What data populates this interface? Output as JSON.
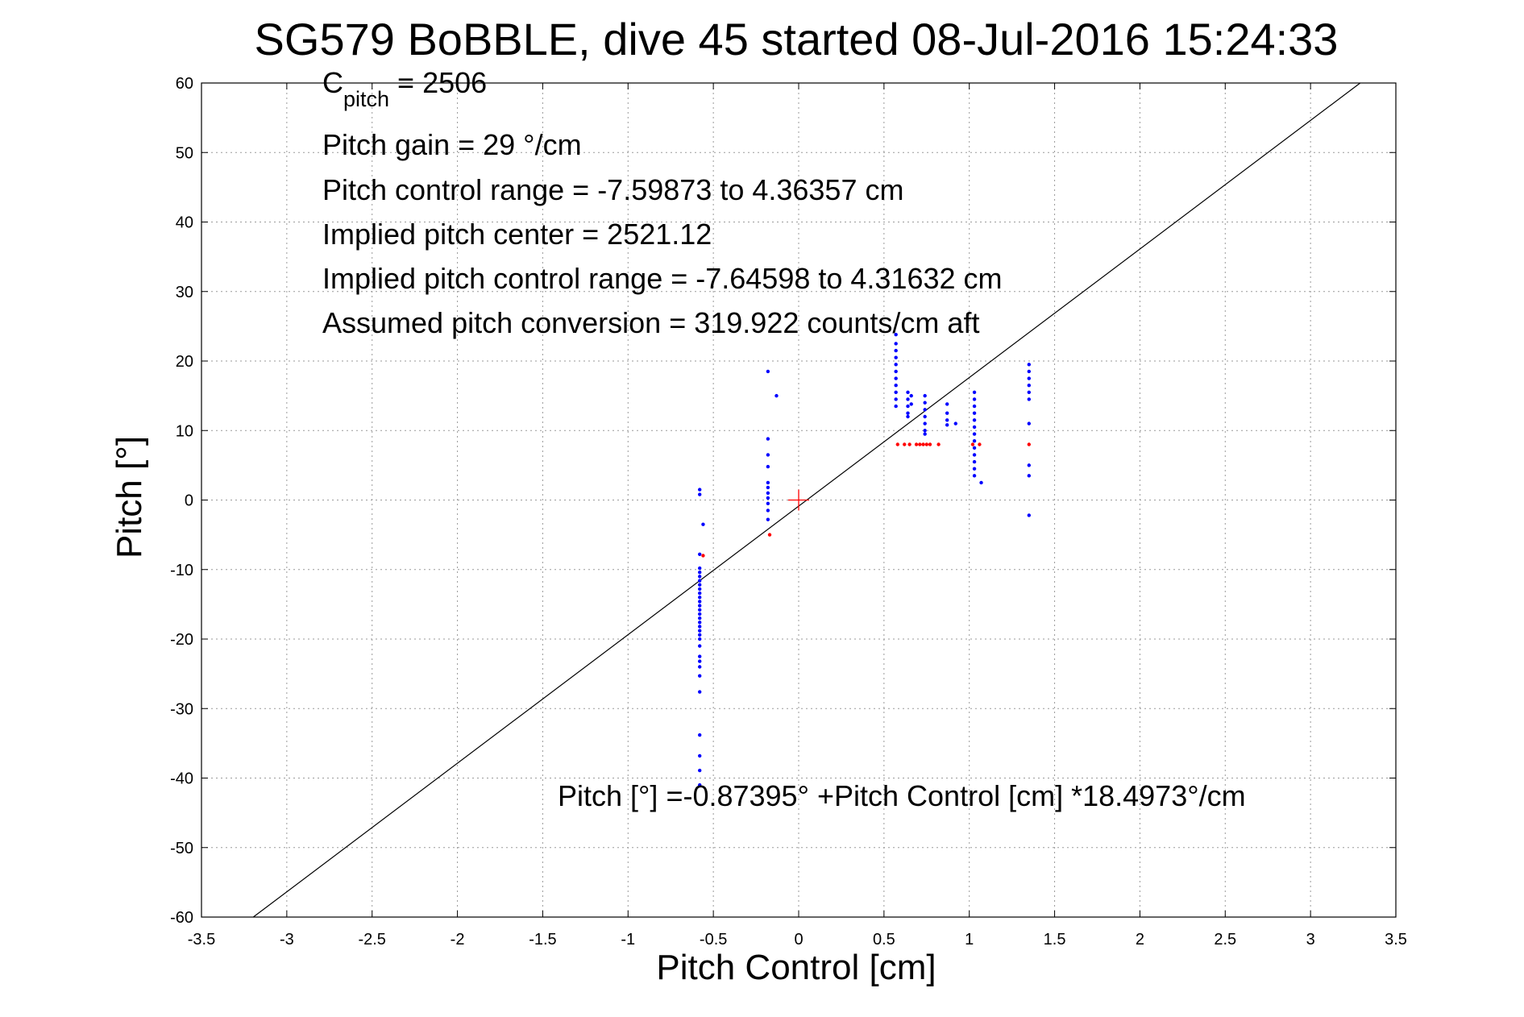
{
  "chart_data": {
    "type": "scatter",
    "title": "SG579 BoBBLE, dive 45 started 08-Jul-2016 15:24:33",
    "xlabel": "Pitch Control [cm]",
    "ylabel": "Pitch [°]",
    "xlim": [
      -3.5,
      3.5
    ],
    "ylim": [
      -60,
      60
    ],
    "xticks": [
      -3.5,
      -3,
      -2.5,
      -2,
      -1.5,
      -1,
      -0.5,
      0,
      0.5,
      1,
      1.5,
      2,
      2.5,
      3,
      3.5
    ],
    "xtick_labels": [
      "-3.5",
      "-3",
      "-2.5",
      "-2",
      "-1.5",
      "-1",
      "-0.5",
      "0",
      "0.5",
      "1",
      "1.5",
      "2",
      "2.5",
      "3",
      "3.5"
    ],
    "yticks": [
      -60,
      -50,
      -40,
      -30,
      -20,
      -10,
      0,
      10,
      20,
      30,
      40,
      50,
      60
    ],
    "ytick_labels": [
      "-60",
      "-50",
      "-40",
      "-30",
      "-20",
      "-10",
      "0",
      "10",
      "20",
      "30",
      "40",
      "50",
      "60"
    ],
    "grid": true,
    "fit_line": {
      "intercept": -0.87395,
      "slope": 18.4973,
      "color": "#000000"
    },
    "center_marker": {
      "x": 0,
      "y": 0,
      "color": "#ff0000",
      "shape": "plus"
    },
    "colors": {
      "blue": "#0000ff",
      "red": "#ff0000"
    },
    "series": [
      {
        "color": "#0000ff",
        "marker": "dot",
        "points": [
          [
            -0.58,
            1.5
          ],
          [
            -0.58,
            0.8
          ],
          [
            -0.56,
            -3.5
          ],
          [
            -0.58,
            -7.8
          ],
          [
            -0.58,
            -9.8
          ],
          [
            -0.58,
            -10.4
          ],
          [
            -0.58,
            -11.0
          ],
          [
            -0.58,
            -11.6
          ],
          [
            -0.58,
            -12.2
          ],
          [
            -0.58,
            -12.8
          ],
          [
            -0.58,
            -13.4
          ],
          [
            -0.58,
            -14.0
          ],
          [
            -0.58,
            -14.6
          ],
          [
            -0.58,
            -15.2
          ],
          [
            -0.58,
            -15.8
          ],
          [
            -0.58,
            -16.4
          ],
          [
            -0.58,
            -17.0
          ],
          [
            -0.58,
            -17.6
          ],
          [
            -0.58,
            -18.2
          ],
          [
            -0.58,
            -18.8
          ],
          [
            -0.58,
            -19.4
          ],
          [
            -0.58,
            -20.0
          ],
          [
            -0.58,
            -21.0
          ],
          [
            -0.58,
            -22.5
          ],
          [
            -0.58,
            -23.2
          ],
          [
            -0.58,
            -24.0
          ],
          [
            -0.58,
            -25.3
          ],
          [
            -0.58,
            -27.6
          ],
          [
            -0.58,
            -33.8
          ],
          [
            -0.58,
            -36.8
          ],
          [
            -0.58,
            -38.9
          ],
          [
            -0.58,
            -41.0
          ],
          [
            -0.18,
            18.5
          ],
          [
            -0.18,
            8.8
          ],
          [
            -0.18,
            6.5
          ],
          [
            -0.18,
            4.8
          ],
          [
            -0.18,
            2.5
          ],
          [
            -0.18,
            1.8
          ],
          [
            -0.18,
            1.0
          ],
          [
            -0.18,
            0.3
          ],
          [
            -0.18,
            -0.5
          ],
          [
            -0.18,
            -1.5
          ],
          [
            -0.18,
            -2.8
          ],
          [
            -0.13,
            15.0
          ],
          [
            0.57,
            23.8
          ],
          [
            0.57,
            22.5
          ],
          [
            0.57,
            21.5
          ],
          [
            0.57,
            20.5
          ],
          [
            0.57,
            19.5
          ],
          [
            0.57,
            18.5
          ],
          [
            0.57,
            17.5
          ],
          [
            0.57,
            16.5
          ],
          [
            0.57,
            15.5
          ],
          [
            0.57,
            14.5
          ],
          [
            0.57,
            13.5
          ],
          [
            0.64,
            15.5
          ],
          [
            0.64,
            14.5
          ],
          [
            0.64,
            13.5
          ],
          [
            0.64,
            12.5
          ],
          [
            0.64,
            12.0
          ],
          [
            0.66,
            15.0
          ],
          [
            0.66,
            13.8
          ],
          [
            0.74,
            15.0
          ],
          [
            0.74,
            14.0
          ],
          [
            0.74,
            13.0
          ],
          [
            0.74,
            12.0
          ],
          [
            0.74,
            11.0
          ],
          [
            0.74,
            10.0
          ],
          [
            0.74,
            9.5
          ],
          [
            0.87,
            13.8
          ],
          [
            0.87,
            12.5
          ],
          [
            0.87,
            11.5
          ],
          [
            0.87,
            10.8
          ],
          [
            0.92,
            11.0
          ],
          [
            1.03,
            15.5
          ],
          [
            1.03,
            14.5
          ],
          [
            1.03,
            13.5
          ],
          [
            1.03,
            12.5
          ],
          [
            1.03,
            11.5
          ],
          [
            1.03,
            10.5
          ],
          [
            1.03,
            9.5
          ],
          [
            1.03,
            8.5
          ],
          [
            1.03,
            7.5
          ],
          [
            1.03,
            6.5
          ],
          [
            1.03,
            5.5
          ],
          [
            1.03,
            4.5
          ],
          [
            1.03,
            3.5
          ],
          [
            1.07,
            2.5
          ],
          [
            1.35,
            19.5
          ],
          [
            1.35,
            18.5
          ],
          [
            1.35,
            17.5
          ],
          [
            1.35,
            16.5
          ],
          [
            1.35,
            15.5
          ],
          [
            1.35,
            14.5
          ],
          [
            1.35,
            11.0
          ],
          [
            1.35,
            5.0
          ],
          [
            1.35,
            3.5
          ],
          [
            1.35,
            -2.2
          ]
        ]
      },
      {
        "color": "#ff0000",
        "marker": "dot",
        "points": [
          [
            -0.56,
            -8.0
          ],
          [
            -0.17,
            -5.0
          ],
          [
            0.58,
            8.0
          ],
          [
            0.62,
            8.0
          ],
          [
            0.65,
            8.0
          ],
          [
            0.69,
            8.0
          ],
          [
            0.71,
            8.0
          ],
          [
            0.73,
            8.0
          ],
          [
            0.75,
            8.0
          ],
          [
            0.77,
            8.0
          ],
          [
            0.82,
            8.0
          ],
          [
            1.02,
            8.0
          ],
          [
            1.06,
            8.0
          ],
          [
            1.35,
            8.0
          ]
        ]
      }
    ],
    "annotations": [
      {
        "text": "C",
        "sub": "pitch",
        "rest": " = 2506"
      },
      {
        "text": "Pitch gain = 29 °/cm"
      },
      {
        "text": "Pitch control range = -7.59873 to 4.36357 cm"
      },
      {
        "text": "Implied pitch center = 2521.12"
      },
      {
        "text": "Implied pitch control range = -7.64598 to 4.31632 cm"
      },
      {
        "text": "Assumed pitch conversion = 319.922 counts/cm aft"
      }
    ],
    "fit_label": "Pitch [°] =-0.87395° +Pitch Control [cm] *18.4973°/cm"
  }
}
